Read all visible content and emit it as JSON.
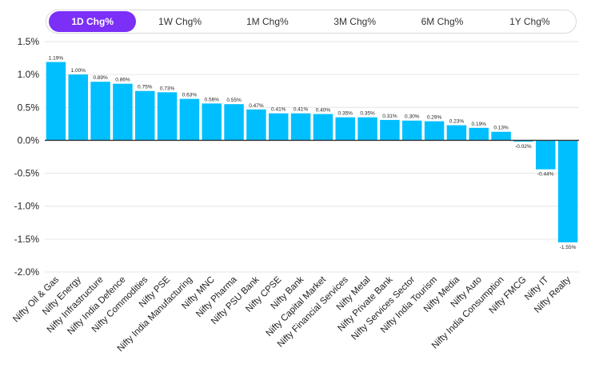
{
  "tabs": [
    {
      "label": "1D Chg%",
      "active": true
    },
    {
      "label": "1W Chg%",
      "active": false
    },
    {
      "label": "1M Chg%",
      "active": false
    },
    {
      "label": "3M Chg%",
      "active": false
    },
    {
      "label": "6M Chg%",
      "active": false
    },
    {
      "label": "1Y Chg%",
      "active": false
    }
  ],
  "colors": {
    "bar": "#00bfff",
    "accent": "#7b2ff7",
    "grid": "#e6e6e6",
    "zero_line": "#333333"
  },
  "chart_data": {
    "type": "bar",
    "categories": [
      "Nifty Oil & Gas",
      "Nifty Energy",
      "Nifty Infrastructure",
      "Nifty India Defence",
      "Nifty Commodities",
      "Nifty PSE",
      "Nifty India Manufacturing",
      "Nifty MNC",
      "Nifty Pharma",
      "Nifty PSU Bank",
      "Nifty CPSE",
      "Nifty Bank",
      "Nifty Capital Market",
      "Nifty Financial Services",
      "Nifty Metal",
      "Nifty Private Bank",
      "Nifty Services Sector",
      "Nifty India Tourism",
      "Nifty Media",
      "Nifty Auto",
      "Nifty India Consumption",
      "Nifty FMCG",
      "Nifty IT",
      "Nifty Realty"
    ],
    "values": [
      1.19,
      1.0,
      0.89,
      0.86,
      0.75,
      0.73,
      0.63,
      0.56,
      0.55,
      0.47,
      0.41,
      0.41,
      0.4,
      0.35,
      0.35,
      0.31,
      0.3,
      0.29,
      0.23,
      0.19,
      0.13,
      -0.02,
      -0.44,
      -1.55
    ],
    "data_labels": [
      "1.19%",
      "1.00%",
      "0.89%",
      "0.86%",
      "0.75%",
      "0.73%",
      "0.63%",
      "0.56%",
      "0.55%",
      "0.47%",
      "0.41%",
      "0.41%",
      "0.40%",
      "0.35%",
      "0.35%",
      "0.31%",
      "0.30%",
      "0.29%",
      "0.23%",
      "0.19%",
      "0.13%",
      "-0.02%",
      "-0.44%",
      "-1.55%"
    ],
    "yticks": [
      1.5,
      1.0,
      0.5,
      0.0,
      -0.5,
      -1.0,
      -1.5,
      -2.0
    ],
    "ytick_labels": [
      "1.5%",
      "1.0%",
      "0.5%",
      "0.0%",
      "-0.5%",
      "-1.0%",
      "-1.5%",
      "-2.0%"
    ],
    "ylim": [
      -2.0,
      1.5
    ],
    "grid": true,
    "title": "",
    "xlabel": "",
    "ylabel": ""
  }
}
